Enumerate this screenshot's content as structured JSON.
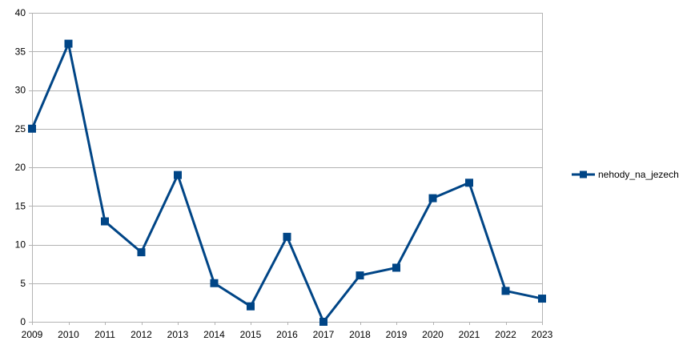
{
  "chart_data": {
    "type": "line",
    "title": "",
    "xlabel": "",
    "ylabel": "",
    "categories": [
      "2009",
      "2010",
      "2011",
      "2012",
      "2013",
      "2014",
      "2015",
      "2016",
      "2017",
      "2018",
      "2019",
      "2020",
      "2021",
      "2022",
      "2023"
    ],
    "series": [
      {
        "name": "nehody_na_jezech",
        "values": [
          25,
          36,
          13,
          9,
          19,
          5,
          2,
          11,
          0,
          6,
          7,
          16,
          18,
          4,
          3
        ],
        "color": "#004586"
      }
    ],
    "ylim": [
      0,
      40
    ],
    "yticks": [
      0,
      5,
      10,
      15,
      20,
      25,
      30,
      35,
      40
    ],
    "grid": true,
    "gridColor": "#b3b3b3",
    "legend": "right"
  }
}
